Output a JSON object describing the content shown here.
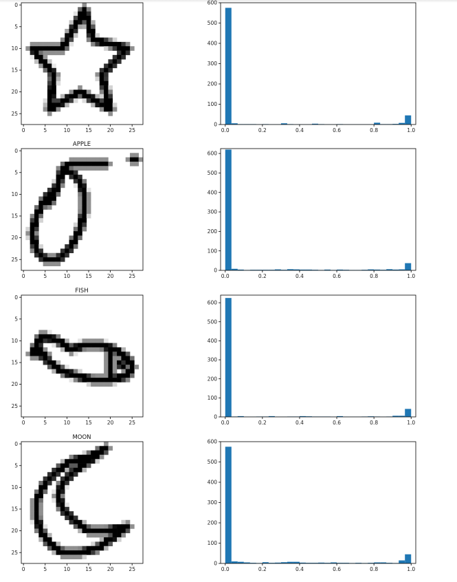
{
  "colors": {
    "bar": "#1f77b4",
    "axis": "#000000",
    "ink": "#000000"
  },
  "image_ticks": [
    0,
    5,
    10,
    15,
    20,
    25
  ],
  "hist_xticks": [
    "0.0",
    "0.2",
    "0.4",
    "0.6",
    "0.8",
    "1.0"
  ],
  "chart_data": [
    {
      "type": "heatmap",
      "title": "",
      "shape": "star",
      "grid_size": 28,
      "xticks": [
        "0",
        "5",
        "10",
        "15",
        "20",
        "25"
      ],
      "yticks": [
        "0",
        "5",
        "10",
        "15",
        "20",
        "25"
      ],
      "colormap": "gray_r"
    },
    {
      "type": "bar",
      "title": "",
      "xlim": [
        0.0,
        1.0
      ],
      "ylim": [
        0,
        600
      ],
      "yticks": [
        "0",
        "100",
        "200",
        "300",
        "400",
        "500",
        "600"
      ],
      "xticks": [
        "0.0",
        "0.2",
        "0.4",
        "0.6",
        "0.8",
        "1.0"
      ],
      "bins": 30,
      "values": [
        575,
        6,
        2,
        2,
        2,
        1,
        2,
        1,
        1,
        6,
        2,
        1,
        1,
        1,
        4,
        2,
        1,
        1,
        2,
        1,
        1,
        1,
        1,
        1,
        9,
        2,
        2,
        3,
        8,
        45
      ]
    },
    {
      "type": "heatmap",
      "title": "APPLE",
      "shape": "apple",
      "grid_size": 28,
      "xticks": [
        "0",
        "5",
        "10",
        "15",
        "20",
        "25"
      ],
      "yticks": [
        "0",
        "5",
        "10",
        "15",
        "20",
        "25"
      ],
      "colormap": "gray_r"
    },
    {
      "type": "bar",
      "title": "",
      "xlim": [
        0.0,
        1.0
      ],
      "ylim": [
        0,
        625
      ],
      "yticks": [
        "0",
        "100",
        "200",
        "300",
        "400",
        "500",
        "600"
      ],
      "xticks": [
        "0.0",
        "0.2",
        "0.4",
        "0.6",
        "0.8",
        "1.0"
      ],
      "bins": 30,
      "values": [
        620,
        8,
        4,
        2,
        3,
        3,
        3,
        3,
        5,
        3,
        6,
        5,
        4,
        4,
        3,
        2,
        4,
        2,
        4,
        3,
        2,
        2,
        3,
        5,
        4,
        3,
        6,
        4,
        5,
        37
      ]
    },
    {
      "type": "heatmap",
      "title": "FISH",
      "shape": "fish",
      "grid_size": 28,
      "xticks": [
        "0",
        "5",
        "10",
        "15",
        "20",
        "25"
      ],
      "yticks": [
        "0",
        "5",
        "10",
        "15",
        "20",
        "25"
      ],
      "colormap": "gray_r"
    },
    {
      "type": "bar",
      "title": "",
      "xlim": [
        0.0,
        1.0
      ],
      "ylim": [
        0,
        640
      ],
      "yticks": [
        "0",
        "100",
        "200",
        "300",
        "400",
        "500",
        "600"
      ],
      "xticks": [
        "0.0",
        "0.2",
        "0.4",
        "0.6",
        "0.8",
        "1.0"
      ],
      "bins": 30,
      "values": [
        625,
        2,
        4,
        1,
        1,
        2,
        2,
        4,
        1,
        1,
        2,
        2,
        4,
        3,
        2,
        2,
        2,
        1,
        4,
        1,
        1,
        1,
        2,
        3,
        2,
        1,
        2,
        6,
        6,
        42
      ]
    },
    {
      "type": "heatmap",
      "title": "MOON",
      "shape": "moon",
      "grid_size": 28,
      "xticks": [
        "0",
        "5",
        "10",
        "15",
        "20",
        "25"
      ],
      "yticks": [
        "0",
        "5",
        "10",
        "15",
        "20",
        "25"
      ],
      "colormap": "gray_r"
    },
    {
      "type": "bar",
      "title": "",
      "xlim": [
        0.0,
        1.0
      ],
      "ylim": [
        0,
        600
      ],
      "yticks": [
        "0",
        "100",
        "200",
        "300",
        "400",
        "500",
        "600"
      ],
      "xticks": [
        "0.0",
        "0.2",
        "0.4",
        "0.6",
        "0.8",
        "1.0"
      ],
      "bins": 30,
      "values": [
        575,
        10,
        8,
        5,
        3,
        2,
        6,
        3,
        4,
        6,
        8,
        8,
        4,
        3,
        3,
        4,
        3,
        5,
        3,
        3,
        2,
        3,
        2,
        3,
        5,
        5,
        3,
        2,
        15,
        45
      ]
    }
  ]
}
